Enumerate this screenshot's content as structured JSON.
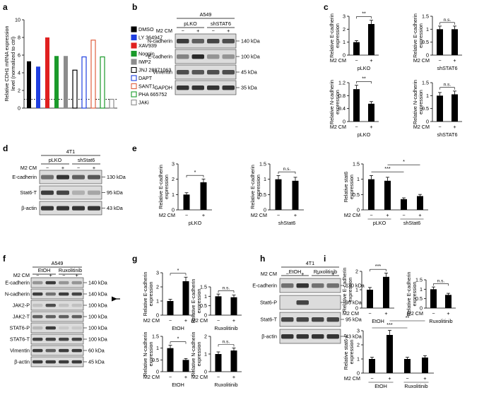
{
  "panel_labels": [
    "a",
    "b",
    "c",
    "d",
    "e",
    "f",
    "g",
    "h",
    "i"
  ],
  "colors": {
    "bar_black": "#000000",
    "blot_band": "#2a2a2a",
    "blot_bg": "#dcdcdc"
  },
  "panel_a": {
    "ylabel_line1": "Relative CDH1 mRNA expression",
    "ylabel_line2": "level (normalized to ctrl)",
    "legend": [
      {
        "label": "DMSO",
        "color": "#000000",
        "filled": true
      },
      {
        "label": "LY 364947",
        "color": "#1f3fe0",
        "filled": true
      },
      {
        "label": "XAV939",
        "color": "#e02020",
        "filled": true
      },
      {
        "label": "Noggin",
        "color": "#1a9a2a",
        "filled": true
      },
      {
        "label": "IWP2",
        "color": "#8c8c8c",
        "filled": true
      },
      {
        "label": "JNJ 28871063",
        "color": "#000000",
        "filled": false
      },
      {
        "label": "DAPT",
        "color": "#1f3fe0",
        "filled": false
      },
      {
        "label": "SANT1",
        "color": "#e06040",
        "filled": false
      },
      {
        "label": "PHA 665752",
        "color": "#1a9a2a",
        "filled": false
      },
      {
        "label": "JAKi",
        "color": "#8c8c8c",
        "filled": false
      }
    ]
  },
  "chart_data": [
    {
      "panel": "a",
      "type": "bar",
      "categories": [
        "DMSO",
        "LY 364947",
        "XAV939",
        "Noggin",
        "IWP2",
        "JNJ 28871063",
        "DAPT",
        "SANT1",
        "PHA 665752",
        "JAKi"
      ],
      "values": [
        5.3,
        4.7,
        8.0,
        5.9,
        5.9,
        4.3,
        5.8,
        7.7,
        5.8,
        1.0
      ],
      "ylim": [
        0,
        10
      ],
      "reference_line": 1,
      "ylabel": "Relative CDH1 mRNA expression level (normalized to ctrl)"
    },
    {
      "panel": "c",
      "type": "bar",
      "ylabel": "Relative E-cadherin expression",
      "xlabel": "pLKO",
      "categories": [
        "−",
        "+"
      ],
      "values": [
        1.0,
        2.4
      ],
      "ylim": [
        0,
        3
      ],
      "significance": "**"
    },
    {
      "panel": "c",
      "type": "bar",
      "ylabel": "Relative E-cadherin expression",
      "xlabel": "shSTAT6",
      "categories": [
        "−",
        "+"
      ],
      "values": [
        1.0,
        1.0
      ],
      "ylim": [
        0,
        1.5
      ],
      "significance": "n.s."
    },
    {
      "panel": "c",
      "type": "bar",
      "ylabel": "Relative N-cadherin expression",
      "xlabel": "pLKO",
      "categories": [
        "−",
        "+"
      ],
      "values": [
        1.0,
        0.55
      ],
      "ylim": [
        0,
        1.2
      ],
      "significance": "**"
    },
    {
      "panel": "c",
      "type": "bar",
      "ylabel": "Relative N-cadherin expression",
      "xlabel": "shSTAT6",
      "categories": [
        "−",
        "+"
      ],
      "values": [
        1.0,
        1.05
      ],
      "ylim": [
        0,
        1.5
      ],
      "significance": "n.s."
    },
    {
      "panel": "e",
      "type": "bar",
      "ylabel": "Relative E-cadherin expression",
      "xlabel": "pLKO",
      "categories": [
        "−",
        "+"
      ],
      "values": [
        1.0,
        1.8
      ],
      "ylim": [
        0,
        3
      ],
      "significance": "*"
    },
    {
      "panel": "e",
      "type": "bar",
      "ylabel": "Relative E-cadherin expression",
      "xlabel": "shStat6",
      "categories": [
        "−",
        "+"
      ],
      "values": [
        1.0,
        0.95
      ],
      "ylim": [
        0,
        1.5
      ],
      "significance": "n.s."
    },
    {
      "panel": "e",
      "type": "bar",
      "ylabel": "Relative stat6 expression",
      "categories": [
        "pLKO −",
        "pLKO +",
        "shStat6 −",
        "shStat6 +"
      ],
      "values": [
        1.0,
        0.95,
        0.35,
        0.45
      ],
      "ylim": [
        0,
        1.5
      ],
      "significance": [
        "***",
        "*"
      ]
    },
    {
      "panel": "g",
      "type": "bar",
      "ylabel": "Relative E-cadherin expression",
      "xlabel": "EtOH",
      "categories": [
        "−",
        "+"
      ],
      "values": [
        1.0,
        2.4
      ],
      "ylim": [
        0,
        3
      ],
      "significance": "*"
    },
    {
      "panel": "g",
      "type": "bar",
      "ylabel": "Relative E-cadherin expression",
      "xlabel": "Ruxolitinib",
      "categories": [
        "−",
        "+"
      ],
      "values": [
        1.0,
        0.95
      ],
      "ylim": [
        0,
        1.5
      ],
      "significance": "n.s."
    },
    {
      "panel": "g",
      "type": "bar",
      "ylabel": "Relative N-cadherin expression",
      "xlabel": "EtOH",
      "categories": [
        "−",
        "+"
      ],
      "values": [
        1.0,
        0.5
      ],
      "ylim": [
        0,
        1.5
      ],
      "significance": "*"
    },
    {
      "panel": "g",
      "type": "bar",
      "ylabel": "Relative N-cadherin expression",
      "xlabel": "Ruxolitinib",
      "categories": [
        "−",
        "+"
      ],
      "values": [
        1.0,
        1.2
      ],
      "ylim": [
        0,
        2
      ],
      "significance": "n.s."
    },
    {
      "panel": "i",
      "type": "bar",
      "ylabel": "Relative E-cadherin expression",
      "xlabel": "EtOH",
      "categories": [
        "−",
        "+"
      ],
      "values": [
        1.0,
        1.7
      ],
      "ylim": [
        0,
        2
      ],
      "significance": "***"
    },
    {
      "panel": "i",
      "type": "bar",
      "ylabel": "Relative E-cadherin expression",
      "xlabel": "Ruxolitinib",
      "categories": [
        "−",
        "+"
      ],
      "values": [
        1.0,
        0.7
      ],
      "ylim": [
        0,
        1.5
      ],
      "significance": "n.s."
    },
    {
      "panel": "i",
      "type": "bar",
      "ylabel": "Relative stat6-P expression",
      "categories": [
        "EtOH −",
        "EtOH +",
        "Ruxolitinib −",
        "Ruxolitinib +"
      ],
      "values": [
        1.0,
        2.7,
        1.0,
        1.1
      ],
      "ylim": [
        0,
        3
      ],
      "significance": [
        "***",
        "**"
      ]
    }
  ],
  "blots": [
    {
      "panel": "b",
      "cell": "A549",
      "groups": [
        "pLKO",
        "shSTAT6"
      ],
      "condition": "M2 CM",
      "lanes": [
        "−",
        "+",
        "−",
        "+"
      ],
      "rows": [
        "N-cadherin",
        "E-cadherin",
        "Vimentin",
        "GAPDH"
      ],
      "markers": [
        "140 kDa",
        "100 kDa",
        "45 kDa",
        "35 kDa"
      ]
    },
    {
      "panel": "d",
      "cell": "4T1",
      "groups": [
        "pLKO",
        "shStat6"
      ],
      "condition": "M2 CM",
      "lanes": [
        "−",
        "+",
        "−",
        "+"
      ],
      "rows": [
        "E-cadherin",
        "Stat6-T",
        "β-actin"
      ],
      "markers": [
        "130 kDa",
        "95 kDa",
        "43 kDa"
      ]
    },
    {
      "panel": "f",
      "cell": "A549",
      "groups": [
        "EtOH",
        "Ruxolitinib"
      ],
      "condition": "M2 CM",
      "lanes": [
        "−",
        "+",
        "−",
        "+"
      ],
      "rows": [
        "E-cadherin",
        "N-cadherin",
        "JAK2-P",
        "JAK2-T",
        "STAT6-P",
        "STAT6-T",
        "Vimentin",
        "β-actin"
      ],
      "markers": [
        "140 kDa",
        "140 kDa",
        "100 kDa",
        "100 kDa",
        "100 kDa",
        "100 kDa",
        "60 kDa",
        "45 kDa"
      ]
    },
    {
      "panel": "h",
      "cell": "4T1",
      "groups": [
        "EtOH",
        "Ruxolitinib"
      ],
      "condition": "M2 CM",
      "lanes": [
        "−",
        "+",
        "−",
        "+"
      ],
      "rows": [
        "E-cadherin",
        "Stat6-P",
        "Stat6-T",
        "β-actin"
      ],
      "markers": [
        "130 kDa",
        "95 kDa",
        "95 kDa",
        "43 kDa"
      ]
    }
  ]
}
